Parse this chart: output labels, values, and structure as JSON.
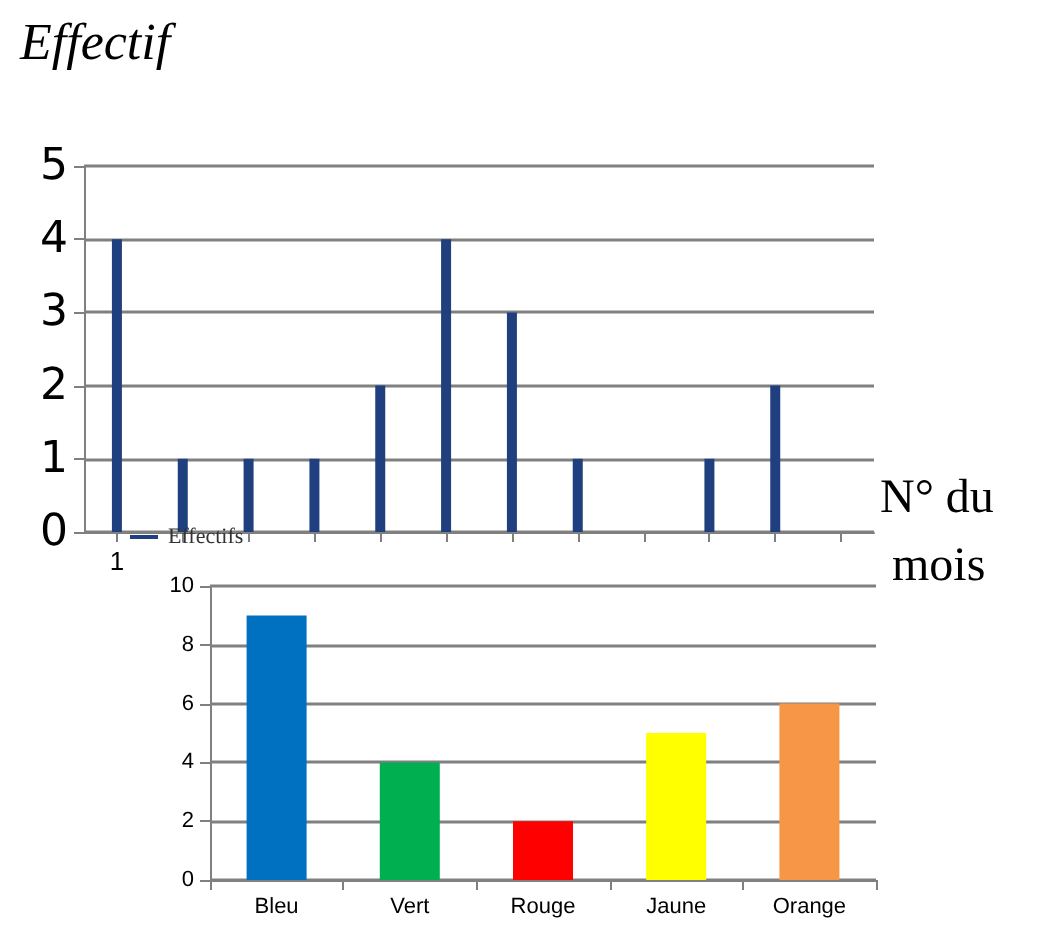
{
  "chart_data": [
    {
      "type": "bar",
      "ylabel": "Effectif",
      "xlabel": "N° du mois",
      "categories": [
        "1",
        null,
        null,
        null,
        null,
        null,
        null,
        null,
        null,
        null,
        null,
        null
      ],
      "series": [
        {
          "name": "Effectifs",
          "color": "#1f3f7f",
          "values": [
            4,
            1,
            1,
            1,
            2,
            4,
            3,
            1,
            0,
            1,
            2,
            0
          ]
        }
      ],
      "ylim": [
        0,
        5
      ],
      "yticks": [
        0,
        1,
        2,
        3,
        4,
        5
      ],
      "grid": "y",
      "legend": "bottom left"
    },
    {
      "type": "bar",
      "categories": [
        "Bleu",
        "Vert",
        "Rouge",
        "Jaune",
        "Orange"
      ],
      "values": [
        9,
        4,
        2,
        5,
        6
      ],
      "colors": [
        "#0070c0",
        "#00b050",
        "#ff0000",
        "#ffff00",
        "#f79646"
      ],
      "ylim": [
        0,
        10
      ],
      "yticks": [
        0,
        2,
        4,
        6,
        8,
        10
      ],
      "grid": "y"
    }
  ]
}
